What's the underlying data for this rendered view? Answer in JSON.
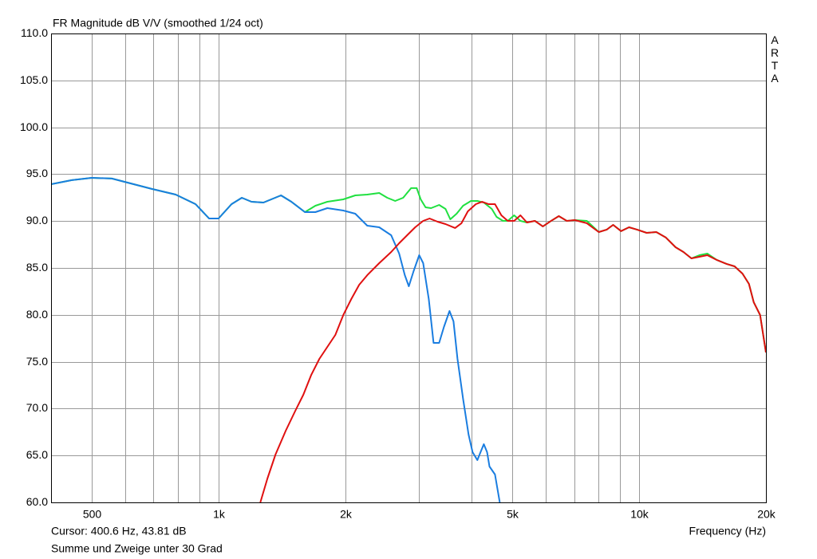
{
  "chart_data": {
    "type": "line",
    "title": "FR Magnitude dB V/V (smoothed 1/24 oct)",
    "brand": "ARTA",
    "cursor": "Cursor: 400.6 Hz, 43.81 dB",
    "x_label": "Frequency (Hz)",
    "note": "Summe und Zweige unter 30 Grad",
    "x_scale": "log",
    "grid": true,
    "xlim": [
      400,
      20000
    ],
    "ylim": [
      60,
      110
    ],
    "xticks": [
      {
        "value": 500,
        "label": "500"
      },
      {
        "value": 1000,
        "label": "1k"
      },
      {
        "value": 2000,
        "label": "2k"
      },
      {
        "value": 5000,
        "label": "5k"
      },
      {
        "value": 10000,
        "label": "10k"
      },
      {
        "value": 20000,
        "label": "20k"
      }
    ],
    "xminor": [
      600,
      700,
      800,
      900,
      3000,
      4000,
      6000,
      7000,
      8000,
      9000
    ],
    "yticks": [
      {
        "value": 60,
        "label": "60.0"
      },
      {
        "value": 65,
        "label": "65.0"
      },
      {
        "value": 70,
        "label": "70.0"
      },
      {
        "value": 75,
        "label": "75.0"
      },
      {
        "value": 80,
        "label": "80.0"
      },
      {
        "value": 85,
        "label": "85.0"
      },
      {
        "value": 90,
        "label": "90.0"
      },
      {
        "value": 95,
        "label": "95.0"
      },
      {
        "value": 100,
        "label": "100.0"
      },
      {
        "value": 105,
        "label": "105.0"
      },
      {
        "value": 110,
        "label": "110.0"
      }
    ],
    "series": [
      {
        "color": "#20e040",
        "x": [
          400,
          448,
          500,
          558,
          608,
          694,
          791,
          882,
          950,
          1000,
          1074,
          1136,
          1198,
          1279,
          1408,
          1490,
          1605,
          1699,
          1814,
          1980,
          2114,
          2257,
          2410,
          2518,
          2630,
          2747,
          2869,
          2959,
          3024,
          3105,
          3200,
          3345,
          3464,
          3556,
          3681,
          3812,
          3982,
          4123,
          4271,
          4461,
          4581,
          4743,
          4868,
          5042,
          5220,
          5407,
          5648,
          5900,
          6163,
          6438,
          6726,
          7026,
          7504,
          8014,
          8371,
          8669,
          9052,
          9456,
          9878,
          10412,
          10975,
          11568,
          12193,
          12733,
          13300,
          13893,
          14512,
          15296,
          16123,
          16843,
          17594,
          18222,
          18706,
          19370,
          20000
        ],
        "values": [
          93.93,
          94.36,
          94.61,
          94.53,
          94.1,
          93.43,
          92.82,
          91.8,
          90.27,
          90.27,
          91.8,
          92.48,
          92.06,
          91.97,
          92.74,
          92.06,
          90.95,
          91.63,
          92.06,
          92.31,
          92.74,
          92.82,
          92.99,
          92.48,
          92.14,
          92.48,
          93.51,
          93.51,
          92.31,
          91.46,
          91.38,
          91.72,
          91.29,
          90.19,
          90.78,
          91.63,
          92.14,
          92.14,
          91.97,
          91.29,
          90.44,
          90.02,
          90.02,
          90.61,
          90.02,
          89.85,
          90.02,
          89.43,
          90.0,
          90.53,
          90.02,
          90.1,
          90.02,
          88.83,
          89.09,
          89.59,
          88.93,
          89.34,
          89.09,
          88.74,
          88.83,
          88.24,
          87.21,
          86.7,
          86.02,
          86.36,
          86.53,
          85.84,
          85.43,
          85.17,
          84.4,
          83.3,
          81.34,
          79.98,
          75.99
        ]
      },
      {
        "color": "#1a7de0",
        "x": [
          400,
          448,
          500,
          558,
          608,
          694,
          791,
          882,
          950,
          1000,
          1074,
          1136,
          1198,
          1279,
          1408,
          1490,
          1605,
          1699,
          1814,
          1980,
          2114,
          2257,
          2410,
          2573,
          2688,
          2772,
          2833,
          2908,
          2999,
          3065,
          3160,
          3244,
          3345,
          3434,
          3540,
          3618,
          3698,
          3812,
          3930,
          4017,
          4123,
          4196,
          4271,
          4349,
          4405,
          4541,
          4661
        ],
        "values": [
          93.93,
          94.36,
          94.61,
          94.53,
          94.1,
          93.43,
          92.82,
          91.8,
          90.27,
          90.27,
          91.8,
          92.48,
          92.06,
          91.97,
          92.74,
          92.06,
          90.95,
          90.95,
          91.38,
          91.12,
          90.78,
          89.51,
          89.34,
          88.49,
          86.53,
          84.23,
          83.04,
          84.66,
          86.36,
          85.51,
          81.68,
          77.01,
          77.01,
          78.71,
          80.41,
          79.3,
          75.31,
          71.05,
          67.23,
          65.36,
          64.51,
          65.36,
          66.21,
          65.36,
          63.83,
          62.98,
          60
        ]
      },
      {
        "color": "#e01010",
        "x": [
          1257,
          1307,
          1366,
          1445,
          1523,
          1591,
          1662,
          1737,
          1814,
          1895,
          1980,
          2068,
          2160,
          2257,
          2410,
          2573,
          2688,
          2808,
          2934,
          3065,
          3174,
          3316,
          3464,
          3650,
          3779,
          3914,
          4088,
          4233,
          4383,
          4541,
          4701,
          4868,
          5042,
          5220,
          5407,
          5648,
          5900,
          6163,
          6438,
          6726,
          7026,
          7504,
          8014,
          8371,
          8669,
          9052,
          9456,
          9878,
          10412,
          10975,
          11568,
          12193,
          12733,
          13300,
          13893,
          14512,
          15296,
          16123,
          16843,
          17594,
          18222,
          18706,
          19370,
          20000
        ],
        "values": [
          60,
          62.55,
          65.1,
          67.65,
          69.78,
          71.48,
          73.61,
          75.31,
          76.58,
          77.86,
          79.98,
          81.68,
          83.21,
          84.23,
          85.51,
          86.7,
          87.64,
          88.49,
          89.34,
          90.02,
          90.27,
          89.93,
          89.68,
          89.26,
          89.77,
          91.04,
          91.8,
          92.06,
          91.8,
          91.8,
          90.61,
          90.02,
          90.02,
          90.61,
          89.85,
          90.02,
          89.43,
          90.0,
          90.53,
          90.02,
          90.1,
          89.77,
          88.83,
          89.09,
          89.59,
          88.93,
          89.34,
          89.09,
          88.74,
          88.83,
          88.24,
          87.21,
          86.7,
          86.02,
          86.19,
          86.36,
          85.84,
          85.43,
          85.17,
          84.4,
          83.3,
          81.34,
          79.98,
          75.99
        ]
      }
    ]
  }
}
